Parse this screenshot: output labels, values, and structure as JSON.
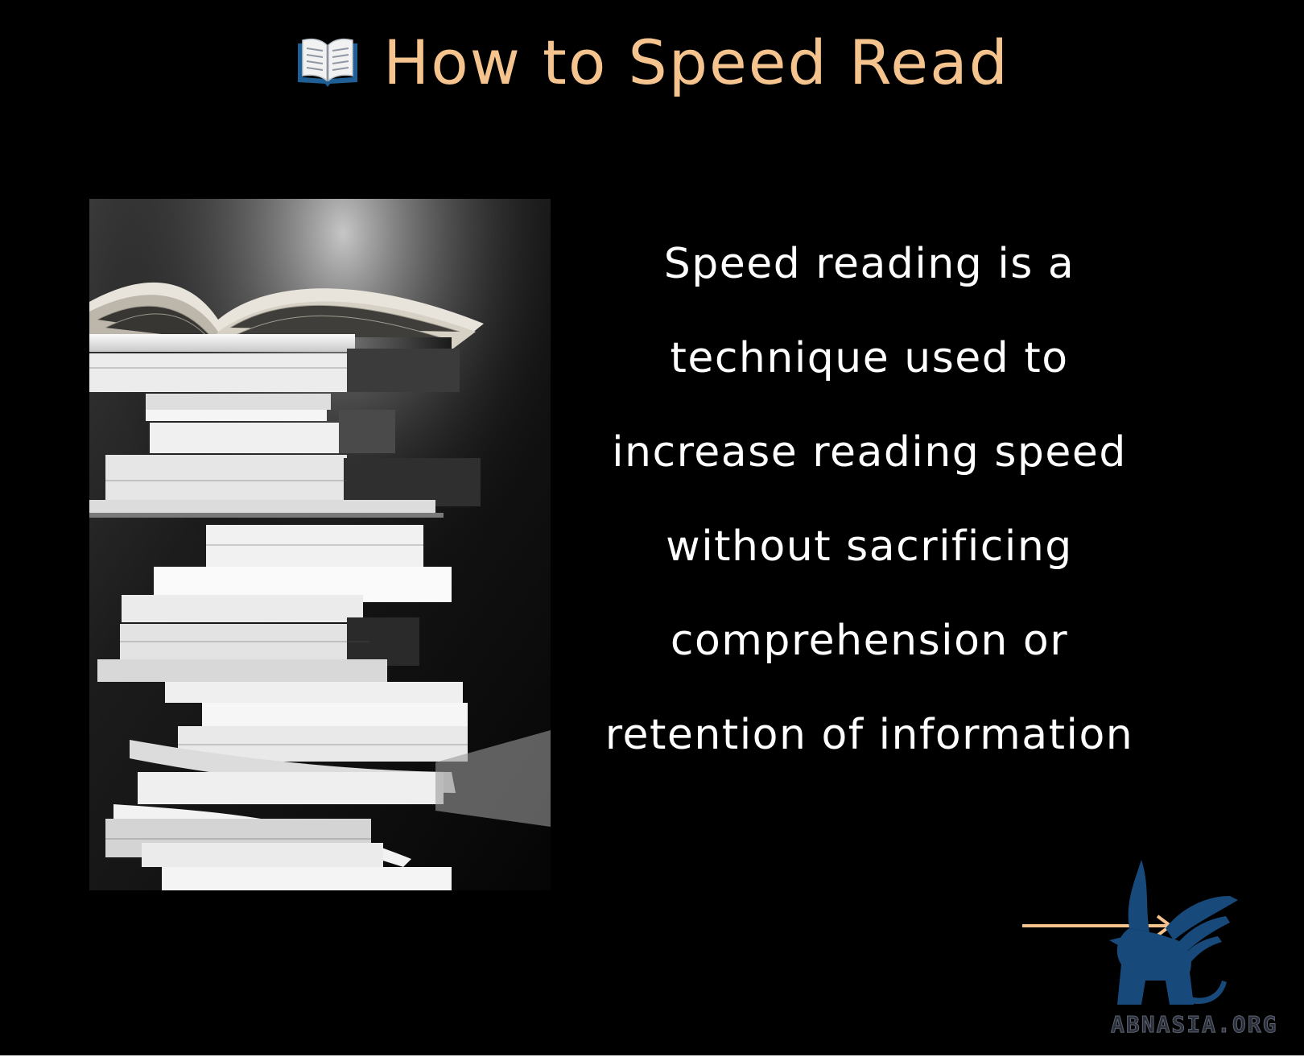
{
  "title": {
    "icon": "open-book-icon",
    "text": "How to Speed Read",
    "color": "#f5c48e"
  },
  "photo": {
    "subject": "black and white photo of a tall stack of books with an open book on top"
  },
  "body": {
    "text": "Speed reading is a technique used to increase reading speed without sacrificing comprehension or retention of information"
  },
  "navigation": {
    "icon": "right-arrow-icon",
    "color": "#f5c48e"
  },
  "watermark": {
    "icon": "griffin-logo-icon",
    "text": "ABNASIA.ORG",
    "color": "#174a7a"
  }
}
